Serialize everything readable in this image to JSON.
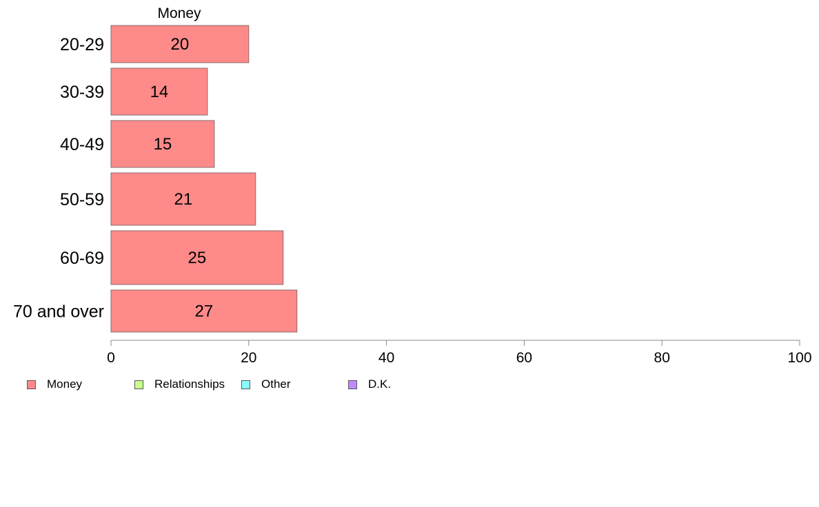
{
  "chart_data": {
    "type": "bar",
    "orientation": "horizontal",
    "categories": [
      "20-29",
      "30-39",
      "40-49",
      "50-59",
      "60-69",
      "70 and over"
    ],
    "series": [
      {
        "name": "Money",
        "color": "#ff8a8a",
        "values": [
          20,
          14,
          15,
          21,
          25,
          27
        ]
      }
    ],
    "panel_title": "Money",
    "x_ticks": [
      0,
      20,
      40,
      60,
      80,
      100
    ],
    "xlim": [
      0,
      100
    ],
    "grid": false,
    "legend_position": "bottom-left"
  },
  "legend": [
    {
      "label": "Money",
      "color": "#ff8a8a"
    },
    {
      "label": "Relationships",
      "color": "#c8ff8a"
    },
    {
      "label": "Other",
      "color": "#8affff"
    },
    {
      "label": "D.K.",
      "color": "#c08aff"
    }
  ]
}
